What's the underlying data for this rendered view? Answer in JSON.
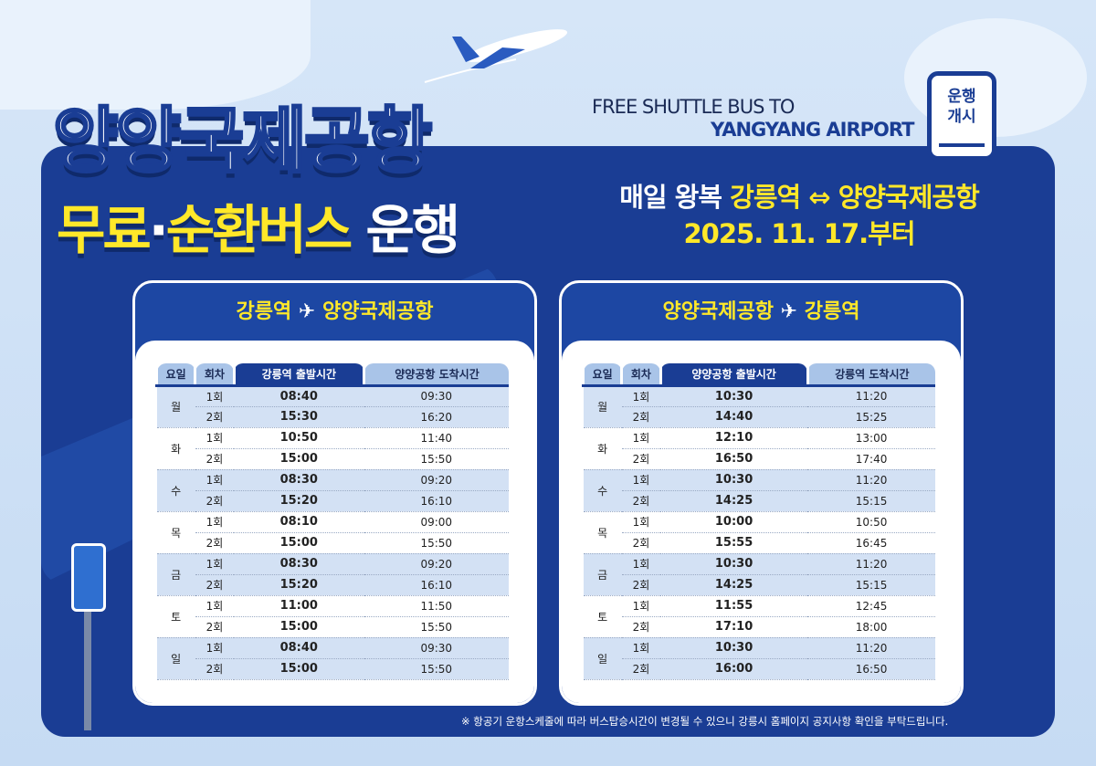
{
  "title": {
    "line1": "양양국제공항",
    "free": "무료",
    "dot": "·",
    "circular": "순환버스",
    "run": "운행"
  },
  "english": {
    "line1": "FREE SHUTTLE BUS TO",
    "line2": "YANGYANG AIRPORT"
  },
  "badge": {
    "line1": "운행",
    "line2": "개시"
  },
  "daily": {
    "prefix": "매일 왕복",
    "route": "강릉역 ⇔ 양양국제공항",
    "start": "2025. 11. 17.부터"
  },
  "routes": [
    {
      "from": "강릉역",
      "to": "양양국제공항",
      "arrow": "✈",
      "headers": [
        "요일",
        "회차",
        "강릉역 출발시간",
        "양양공항 도착시간"
      ],
      "days": [
        {
          "day": "월",
          "trips": [
            [
              "1회",
              "08:40",
              "09:30"
            ],
            [
              "2회",
              "15:30",
              "16:20"
            ]
          ]
        },
        {
          "day": "화",
          "trips": [
            [
              "1회",
              "10:50",
              "11:40"
            ],
            [
              "2회",
              "15:00",
              "15:50"
            ]
          ]
        },
        {
          "day": "수",
          "trips": [
            [
              "1회",
              "08:30",
              "09:20"
            ],
            [
              "2회",
              "15:20",
              "16:10"
            ]
          ]
        },
        {
          "day": "목",
          "trips": [
            [
              "1회",
              "08:10",
              "09:00"
            ],
            [
              "2회",
              "15:00",
              "15:50"
            ]
          ]
        },
        {
          "day": "금",
          "trips": [
            [
              "1회",
              "08:30",
              "09:20"
            ],
            [
              "2회",
              "15:20",
              "16:10"
            ]
          ]
        },
        {
          "day": "토",
          "trips": [
            [
              "1회",
              "11:00",
              "11:50"
            ],
            [
              "2회",
              "15:00",
              "15:50"
            ]
          ]
        },
        {
          "day": "일",
          "trips": [
            [
              "1회",
              "08:40",
              "09:30"
            ],
            [
              "2회",
              "15:00",
              "15:50"
            ]
          ]
        }
      ]
    },
    {
      "from": "양양국제공항",
      "to": "강릉역",
      "arrow": "✈",
      "headers": [
        "요일",
        "회차",
        "양양공항 출발시간",
        "강릉역 도착시간"
      ],
      "days": [
        {
          "day": "월",
          "trips": [
            [
              "1회",
              "10:30",
              "11:20"
            ],
            [
              "2회",
              "14:40",
              "15:25"
            ]
          ]
        },
        {
          "day": "화",
          "trips": [
            [
              "1회",
              "12:10",
              "13:00"
            ],
            [
              "2회",
              "16:50",
              "17:40"
            ]
          ]
        },
        {
          "day": "수",
          "trips": [
            [
              "1회",
              "10:30",
              "11:20"
            ],
            [
              "2회",
              "14:25",
              "15:15"
            ]
          ]
        },
        {
          "day": "목",
          "trips": [
            [
              "1회",
              "10:00",
              "10:50"
            ],
            [
              "2회",
              "15:55",
              "16:45"
            ]
          ]
        },
        {
          "day": "금",
          "trips": [
            [
              "1회",
              "10:30",
              "11:20"
            ],
            [
              "2회",
              "14:25",
              "15:15"
            ]
          ]
        },
        {
          "day": "토",
          "trips": [
            [
              "1회",
              "11:55",
              "12:45"
            ],
            [
              "2회",
              "17:10",
              "18:00"
            ]
          ]
        },
        {
          "day": "일",
          "trips": [
            [
              "1회",
              "10:30",
              "11:20"
            ],
            [
              "2회",
              "16:00",
              "16:50"
            ]
          ]
        }
      ]
    }
  ],
  "note": "※ 항공기 운항스케줄에 따라 버스탑승시간이 변경될 수 있으니 강릉시 홈페이지 공지사항 확인을 부탁드립니다.",
  "colors": {
    "navy": "#1a3d94",
    "yellow": "#ffe829",
    "background": "#cfe0f5"
  }
}
